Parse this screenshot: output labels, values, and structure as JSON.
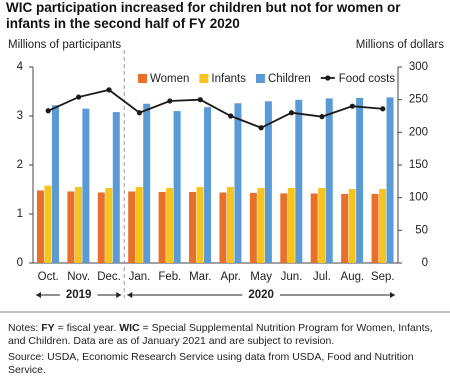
{
  "chart_data": {
    "type": "bar-line",
    "title": "WIC participation increased for children but not for women or infants in the second half of FY 2020",
    "ylabel": "Millions of participants",
    "y2label": "Millions of dollars",
    "categories": [
      "Oct.",
      "Nov.",
      "Dec.",
      "Jan.",
      "Feb.",
      "Mar.",
      "Apr.",
      "May",
      "Jun.",
      "Jul.",
      "Aug.",
      "Sep."
    ],
    "year_labels": [
      "2019",
      "2020"
    ],
    "series": [
      {
        "name": "Women",
        "color": "#e8702a",
        "values": [
          1.48,
          1.46,
          1.44,
          1.46,
          1.45,
          1.45,
          1.44,
          1.43,
          1.42,
          1.42,
          1.41,
          1.41
        ]
      },
      {
        "name": "Infants",
        "color": "#f7c41f",
        "values": [
          1.58,
          1.55,
          1.53,
          1.55,
          1.53,
          1.55,
          1.55,
          1.53,
          1.53,
          1.53,
          1.51,
          1.51
        ]
      },
      {
        "name": "Children",
        "color": "#5b9bd5",
        "values": [
          3.22,
          3.15,
          3.08,
          3.25,
          3.1,
          3.18,
          3.26,
          3.3,
          3.33,
          3.36,
          3.37,
          3.38
        ]
      },
      {
        "name": "Food costs",
        "color": "#1a1a1a",
        "axis": "y2",
        "values": [
          233,
          254,
          265,
          230,
          248,
          250,
          225,
          207,
          230,
          224,
          240,
          236
        ]
      }
    ],
    "ylim": [
      0,
      4
    ],
    "yticks": [
      0,
      1,
      2,
      3,
      4
    ],
    "y2lim": [
      0,
      300
    ],
    "y2ticks": [
      0,
      50,
      100,
      150,
      200,
      250,
      300
    ],
    "legend": "top"
  },
  "notes": [
    "Notes: ",
    "FY",
    " = fiscal year. ",
    "WIC",
    " = Special Supplemental Nutrition Program for Women, Infants, and Children. Data are as of January 2021 and are subject to revision."
  ],
  "source": "Source: USDA, Economic Research Service using data from USDA, Food and Nutrition Service."
}
